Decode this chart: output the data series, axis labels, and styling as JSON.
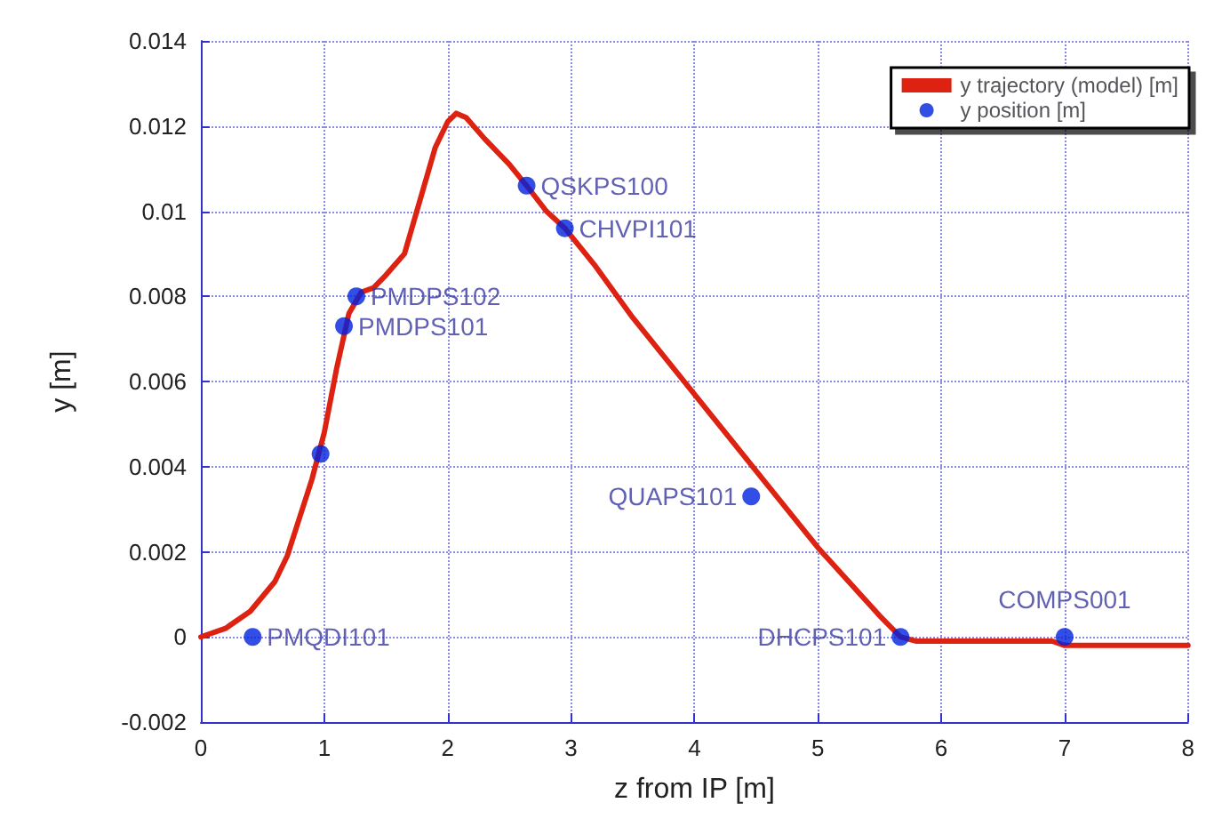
{
  "chart_data": {
    "type": "line",
    "xlabel": "z from IP [m]",
    "ylabel": "y [m]",
    "xlim": [
      0,
      8
    ],
    "xticks": [
      0,
      1,
      2,
      3,
      4,
      5,
      6,
      7,
      8
    ],
    "ylim": [
      -0.002,
      0.014
    ],
    "yticks": [
      -0.002,
      0,
      0.002,
      0.004,
      0.006,
      0.008,
      0.01,
      0.012,
      0.014
    ],
    "grid": true,
    "legend": "top right",
    "series": [
      {
        "name": "y trajectory (model) [m]",
        "color": "#dd2211",
        "marker": "none",
        "line_style": "solid",
        "x": [
          0,
          0.2,
          0.4,
          0.6,
          0.7,
          0.8,
          0.9,
          1.0,
          1.1,
          1.2,
          1.3,
          1.4,
          1.5,
          1.65,
          1.8,
          1.9,
          2.0,
          2.07,
          2.15,
          2.3,
          2.5,
          2.64,
          2.8,
          2.95,
          3.2,
          3.5,
          4.0,
          4.5,
          5.0,
          5.5,
          5.67,
          5.8,
          6.9,
          7.0,
          8.0
        ],
        "values": [
          0,
          0.0002,
          0.0006,
          0.0013,
          0.0019,
          0.0028,
          0.0037,
          0.0048,
          0.0063,
          0.0076,
          0.0081,
          0.0082,
          0.0085,
          0.009,
          0.0105,
          0.0115,
          0.0121,
          0.0123,
          0.0122,
          0.0117,
          0.0111,
          0.0106,
          0.01,
          0.0096,
          0.0087,
          0.0075,
          0.0057,
          0.0039,
          0.0021,
          0.0005,
          0,
          -0.0001,
          -0.0001,
          -0.0002,
          -0.0002
        ]
      },
      {
        "name": "y position [m]",
        "type": "scatter",
        "color": "#0022dd",
        "marker": "circle",
        "x": [
          0.42,
          0.97,
          1.16,
          1.26,
          2.64,
          2.95,
          4.46,
          5.67,
          7.0
        ],
        "values": [
          0,
          0.0043,
          0.0073,
          0.008,
          0.0106,
          0.0096,
          0.0033,
          0,
          0
        ]
      }
    ],
    "annotations": [
      {
        "text": "PMQDI101",
        "x": 0.42,
        "y": 0
      },
      {
        "text": "PMDPS101",
        "x": 1.16,
        "y": 0.0073
      },
      {
        "text": "PMDPS102",
        "x": 1.26,
        "y": 0.008
      },
      {
        "text": "QSKPS100",
        "x": 2.64,
        "y": 0.0106
      },
      {
        "text": "CHVPI101",
        "x": 2.95,
        "y": 0.0096
      },
      {
        "text": "QUAPS101",
        "x": 4.46,
        "y": 0.0033
      },
      {
        "text": "DHCPS101",
        "x": 5.67,
        "y": 0
      },
      {
        "text": "COMPS001",
        "x": 7.0,
        "y": 0
      }
    ]
  }
}
